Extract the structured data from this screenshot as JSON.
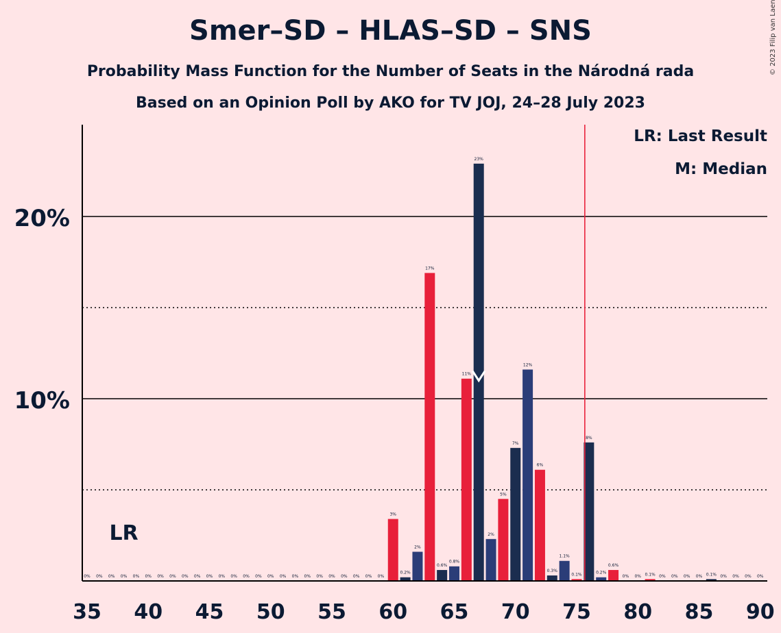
{
  "title": "Smer–SD – HLAS–SD – SNS",
  "subtitle": "Probability Mass Function for the Number of Seats in the Národná rada",
  "subtitle2": "Based on an Opinion Poll by AKO for TV JOJ, 24–28 July 2023",
  "copyright": "© 2023 Filip van Laenen",
  "legend": {
    "last_result": "LR: Last Result",
    "median": "M: Median"
  },
  "colors": {
    "background": "#ffe5e7",
    "dark_navy": "#1b2d4f",
    "mid_navy": "#2b3d78",
    "red": "#e8203a",
    "majority_line": "#e8203a",
    "text": "#0b1a33"
  },
  "chart_data": {
    "type": "bar",
    "title": "Smer–SD – HLAS–SD – SNS",
    "xlabel": "",
    "ylabel": "",
    "x_ticks": [
      "35",
      "40",
      "45",
      "50",
      "55",
      "60",
      "65",
      "70",
      "75",
      "80",
      "85",
      "90"
    ],
    "y_ticks": [
      "10%",
      "20%"
    ],
    "ylim": [
      0,
      25
    ],
    "xlim": [
      35,
      90
    ],
    "grid": "solid at 10% and 20%, dotted at 5% and 15%",
    "last_result_seat": 38,
    "last_result_label": "LR",
    "median_seat": 67,
    "majority_seat": 76,
    "bars": [
      {
        "seats": 35,
        "value": 0.0,
        "label": "0%"
      },
      {
        "seats": 36,
        "value": 0.0,
        "label": "0%"
      },
      {
        "seats": 37,
        "value": 0.0,
        "label": "0%"
      },
      {
        "seats": 38,
        "value": 0.0,
        "label": "0%"
      },
      {
        "seats": 39,
        "value": 0.0,
        "label": "0%"
      },
      {
        "seats": 40,
        "value": 0.0,
        "label": "0%"
      },
      {
        "seats": 41,
        "value": 0.0,
        "label": "0%"
      },
      {
        "seats": 42,
        "value": 0.0,
        "label": "0%"
      },
      {
        "seats": 43,
        "value": 0.0,
        "label": "0%"
      },
      {
        "seats": 44,
        "value": 0.0,
        "label": "0%"
      },
      {
        "seats": 45,
        "value": 0.0,
        "label": "0%"
      },
      {
        "seats": 46,
        "value": 0.0,
        "label": "0%"
      },
      {
        "seats": 47,
        "value": 0.0,
        "label": "0%"
      },
      {
        "seats": 48,
        "value": 0.0,
        "label": "0%"
      },
      {
        "seats": 49,
        "value": 0.0,
        "label": "0%"
      },
      {
        "seats": 50,
        "value": 0.0,
        "label": "0%"
      },
      {
        "seats": 51,
        "value": 0.0,
        "label": "0%"
      },
      {
        "seats": 52,
        "value": 0.0,
        "label": "0%"
      },
      {
        "seats": 53,
        "value": 0.0,
        "label": "0%"
      },
      {
        "seats": 54,
        "value": 0.0,
        "label": "0%"
      },
      {
        "seats": 55,
        "value": 0.0,
        "label": "0%"
      },
      {
        "seats": 56,
        "value": 0.0,
        "label": "0%"
      },
      {
        "seats": 57,
        "value": 0.0,
        "label": "0%"
      },
      {
        "seats": 58,
        "value": 0.0,
        "label": "0%"
      },
      {
        "seats": 59,
        "value": 0.0,
        "label": "0%"
      },
      {
        "seats": 60,
        "value": 3.4,
        "label": "3%",
        "color": "red"
      },
      {
        "seats": 61,
        "value": 0.2,
        "label": "0.2%",
        "color": "dark_navy"
      },
      {
        "seats": 62,
        "value": 1.6,
        "label": "2%",
        "color": "mid_navy"
      },
      {
        "seats": 63,
        "value": 16.9,
        "label": "17%",
        "color": "red"
      },
      {
        "seats": 64,
        "value": 0.6,
        "label": "0.6%",
        "color": "dark_navy"
      },
      {
        "seats": 65,
        "value": 0.8,
        "label": "0.8%",
        "color": "mid_navy"
      },
      {
        "seats": 66,
        "value": 11.1,
        "label": "11%",
        "color": "red"
      },
      {
        "seats": 67,
        "value": 22.9,
        "label": "23%",
        "color": "dark_navy"
      },
      {
        "seats": 68,
        "value": 2.3,
        "label": "2%",
        "color": "mid_navy"
      },
      {
        "seats": 69,
        "value": 4.5,
        "label": "5%",
        "color": "red"
      },
      {
        "seats": 70,
        "value": 7.3,
        "label": "7%",
        "color": "dark_navy"
      },
      {
        "seats": 71,
        "value": 11.6,
        "label": "12%",
        "color": "mid_navy"
      },
      {
        "seats": 72,
        "value": 6.1,
        "label": "6%",
        "color": "red"
      },
      {
        "seats": 73,
        "value": 0.3,
        "label": "0.3%",
        "color": "dark_navy"
      },
      {
        "seats": 74,
        "value": 1.1,
        "label": "1.1%",
        "color": "mid_navy"
      },
      {
        "seats": 75,
        "value": 0.1,
        "label": "0.1%",
        "color": "red"
      },
      {
        "seats": 76,
        "value": 7.6,
        "label": "8%",
        "color": "dark_navy"
      },
      {
        "seats": 77,
        "value": 0.2,
        "label": "0.2%",
        "color": "mid_navy"
      },
      {
        "seats": 78,
        "value": 0.6,
        "label": "0.6%",
        "color": "red"
      },
      {
        "seats": 79,
        "value": 0.0,
        "label": "0%"
      },
      {
        "seats": 80,
        "value": 0.0,
        "label": "0%"
      },
      {
        "seats": 81,
        "value": 0.1,
        "label": "0.1%",
        "color": "red"
      },
      {
        "seats": 82,
        "value": 0.0,
        "label": "0%"
      },
      {
        "seats": 83,
        "value": 0.0,
        "label": "0%"
      },
      {
        "seats": 84,
        "value": 0.0,
        "label": "0%"
      },
      {
        "seats": 85,
        "value": 0.0,
        "label": "0%"
      },
      {
        "seats": 86,
        "value": 0.1,
        "label": "0.1%"
      },
      {
        "seats": 87,
        "value": 0.0,
        "label": "0%"
      },
      {
        "seats": 88,
        "value": 0.0,
        "label": "0%"
      },
      {
        "seats": 89,
        "value": 0.0,
        "label": "0%"
      },
      {
        "seats": 90,
        "value": 0.0,
        "label": "0%"
      }
    ]
  }
}
